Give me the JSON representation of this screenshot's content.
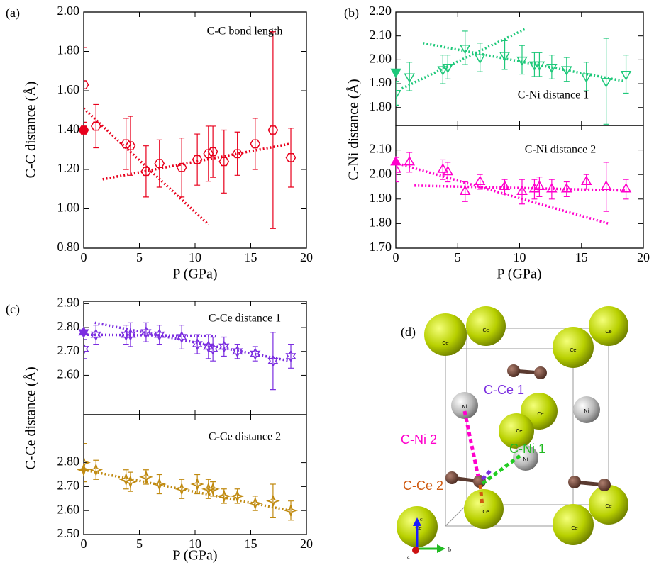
{
  "chart_data": [
    {
      "type": "scatter",
      "panel": "(a)",
      "ylabel": "C-C distance (Å)",
      "xlabel": "P (GPa)",
      "annotation": "C-C bond length",
      "xlim": [
        0,
        20
      ],
      "xticks": [
        0,
        5,
        10,
        15,
        20
      ],
      "ylim": [
        0.8,
        2.0
      ],
      "yticks": [
        {
          "value": 0.8,
          "label": "0.80"
        },
        {
          "value": 1.0,
          "label": "1.00"
        },
        {
          "value": 1.2,
          "label": "1.20"
        },
        {
          "value": 1.4,
          "label": "1.40"
        },
        {
          "value": 1.6,
          "label": "1.60"
        },
        {
          "value": 1.8,
          "label": "1.80"
        },
        {
          "value": 2.0,
          "label": "2.00"
        }
      ],
      "color": "#e8001c",
      "marker": "hexagon",
      "x": [
        0,
        1.1,
        3.8,
        4.2,
        5.6,
        6.8,
        8.8,
        10.2,
        11.2,
        11.6,
        12.6,
        13.8,
        15.4,
        17.0,
        18.6
      ],
      "values": [
        1.63,
        1.42,
        1.33,
        1.32,
        1.19,
        1.23,
        1.21,
        1.25,
        1.28,
        1.29,
        1.24,
        1.28,
        1.33,
        1.4,
        1.26
      ],
      "errors": [
        0.19,
        0.11,
        0.13,
        0.15,
        0.13,
        0.12,
        0.15,
        0.13,
        0.14,
        0.13,
        0.16,
        0.11,
        0.13,
        0.5,
        0.15
      ],
      "highlight": {
        "x": 0,
        "value": 1.4
      },
      "fits": [
        {
          "x": [
            0,
            11.2
          ],
          "values": [
            1.51,
            0.92
          ]
        },
        {
          "x": [
            1.7,
            18.5
          ],
          "values": [
            1.15,
            1.33
          ]
        }
      ]
    },
    {
      "type": "scatter",
      "panel": "(b)",
      "ylabel": "C-Ni distance (Å)",
      "annotation": "C-Ni distance 1",
      "xlim": [
        0,
        20
      ],
      "xticks": [
        0,
        5,
        10,
        15,
        20
      ],
      "ylim": [
        1.725,
        2.2
      ],
      "yticks": [
        {
          "value": 1.8,
          "label": "1.80"
        },
        {
          "value": 1.9,
          "label": "1.90"
        },
        {
          "value": 2.0,
          "label": "2.00"
        },
        {
          "value": 2.1,
          "label": "2.10"
        },
        {
          "value": 2.2,
          "label": "2.20"
        }
      ],
      "color": "#1ec87a",
      "marker": "triangle-down",
      "x": [
        0,
        1.1,
        3.8,
        4.2,
        5.6,
        6.8,
        8.8,
        10.2,
        11.2,
        11.6,
        12.6,
        13.8,
        15.4,
        17.0,
        18.6
      ],
      "values": [
        1.86,
        1.93,
        1.96,
        1.97,
        2.05,
        2.01,
        2.02,
        2.0,
        1.98,
        1.98,
        1.97,
        1.96,
        1.93,
        1.91,
        1.94
      ],
      "errors": [
        0.05,
        0.06,
        0.06,
        0.05,
        0.07,
        0.06,
        0.06,
        0.06,
        0.05,
        0.05,
        0.05,
        0.05,
        0.06,
        0.18,
        0.08
      ],
      "highlight": {
        "x": 0,
        "value": 1.95
      },
      "fits": [
        {
          "x": [
            0.5,
            10.5
          ],
          "values": [
            1.88,
            2.13
          ]
        },
        {
          "x": [
            2.2,
            18.5
          ],
          "values": [
            2.07,
            1.91
          ]
        }
      ]
    },
    {
      "type": "scatter",
      "xlabel": "P (GPa)",
      "annotation": "C-Ni distance 2",
      "xlim": [
        0,
        20
      ],
      "xticks": [
        0,
        5,
        10,
        15,
        20
      ],
      "ylim": [
        1.7,
        2.2
      ],
      "yticks": [
        {
          "value": 1.7,
          "label": "1.70"
        },
        {
          "value": 1.8,
          "label": "1.80"
        },
        {
          "value": 1.9,
          "label": "1.90"
        },
        {
          "value": 2.0,
          "label": "2.00"
        },
        {
          "value": 2.1,
          "label": "2.10"
        }
      ],
      "color": "#ff00cc",
      "marker": "triangle-up",
      "x": [
        0,
        1.1,
        3.8,
        4.2,
        5.6,
        6.8,
        8.8,
        10.2,
        11.2,
        11.6,
        12.6,
        13.8,
        15.4,
        17.0,
        18.6
      ],
      "values": [
        2.02,
        2.05,
        2.02,
        2.01,
        1.93,
        1.97,
        1.95,
        1.93,
        1.94,
        1.95,
        1.94,
        1.94,
        1.97,
        1.95,
        1.94
      ],
      "errors": [
        0.05,
        0.04,
        0.04,
        0.04,
        0.04,
        0.03,
        0.03,
        0.05,
        0.04,
        0.04,
        0.04,
        0.03,
        0.03,
        0.1,
        0.04
      ],
      "highlight": {
        "x": 0,
        "value": 2.05
      },
      "fits": [
        {
          "x": [
            0.5,
            17.2
          ],
          "values": [
            2.04,
            1.8
          ]
        },
        {
          "x": [
            1.5,
            18.5
          ],
          "values": [
            1.955,
            1.935
          ]
        }
      ]
    },
    {
      "type": "scatter",
      "panel": "(c)",
      "ylabel": "C-Ce distance (Å)",
      "annotation": "C-Ce distance 1",
      "xlim": [
        0,
        20
      ],
      "xticks": [
        0,
        5,
        10,
        15,
        20
      ],
      "ylim": [
        2.435,
        2.91
      ],
      "yticks": [
        {
          "value": 2.6,
          "label": "2.60"
        },
        {
          "value": 2.7,
          "label": "2.70"
        },
        {
          "value": 2.8,
          "label": "2.80"
        },
        {
          "value": 2.9,
          "label": "2.90"
        }
      ],
      "color": "#7b2ee0",
      "marker": "hexagram",
      "x": [
        0,
        1.1,
        3.8,
        4.2,
        5.6,
        6.8,
        8.8,
        10.2,
        11.2,
        11.6,
        12.6,
        13.8,
        15.4,
        17.0,
        18.6
      ],
      "values": [
        2.71,
        2.77,
        2.77,
        2.77,
        2.78,
        2.77,
        2.76,
        2.73,
        2.72,
        2.71,
        2.72,
        2.7,
        2.69,
        2.66,
        2.68
      ],
      "errors": [
        0.04,
        0.04,
        0.04,
        0.05,
        0.04,
        0.04,
        0.05,
        0.04,
        0.05,
        0.05,
        0.04,
        0.03,
        0.03,
        0.12,
        0.05
      ],
      "highlight": {
        "x": 0,
        "value": 2.78
      },
      "fits": [
        {
          "x": [
            0,
            12
          ],
          "values": [
            2.77,
            2.765
          ]
        },
        {
          "x": [
            1,
            18.5
          ],
          "values": [
            2.82,
            2.66
          ]
        }
      ]
    },
    {
      "type": "scatter",
      "xlabel": "P (GPa)",
      "annotation": "C-Ce distance 2",
      "xlim": [
        0,
        20
      ],
      "xticks": [
        0,
        5,
        10,
        15,
        20
      ],
      "ylim": [
        2.5,
        3.0
      ],
      "yticks": [
        {
          "value": 2.5,
          "label": "2.50"
        },
        {
          "value": 2.6,
          "label": "2.60"
        },
        {
          "value": 2.7,
          "label": "2.70"
        },
        {
          "value": 2.8,
          "label": "2.80"
        }
      ],
      "color": "#c08a10",
      "marker": "star4",
      "x": [
        0,
        1.1,
        3.8,
        4.2,
        5.6,
        6.8,
        8.8,
        10.2,
        11.2,
        11.6,
        12.6,
        13.8,
        15.4,
        17.0,
        18.6
      ],
      "values": [
        2.8,
        2.77,
        2.73,
        2.72,
        2.74,
        2.71,
        2.69,
        2.71,
        2.69,
        2.69,
        2.66,
        2.66,
        2.63,
        2.64,
        2.6
      ],
      "errors": [
        0.08,
        0.04,
        0.04,
        0.04,
        0.03,
        0.04,
        0.04,
        0.04,
        0.04,
        0.03,
        0.03,
        0.03,
        0.03,
        0.07,
        0.04
      ],
      "highlight": {
        "x": 0,
        "value": 2.77
      },
      "fits": [
        {
          "x": [
            0,
            18.5
          ],
          "values": [
            2.77,
            2.6
          ]
        }
      ]
    }
  ],
  "structure": {
    "panel": "(d)",
    "atom_labels": {
      "ce": "Ce",
      "ni": "Ni"
    },
    "bonds": {
      "c_ce_1": "C-Ce 1",
      "c_ni_2": "C-Ni 2",
      "c_ni_1": "C-Ni 1",
      "c_ce_2": "C-Ce 2"
    },
    "axes": {
      "a": "a",
      "b": "b",
      "c": "c"
    }
  }
}
